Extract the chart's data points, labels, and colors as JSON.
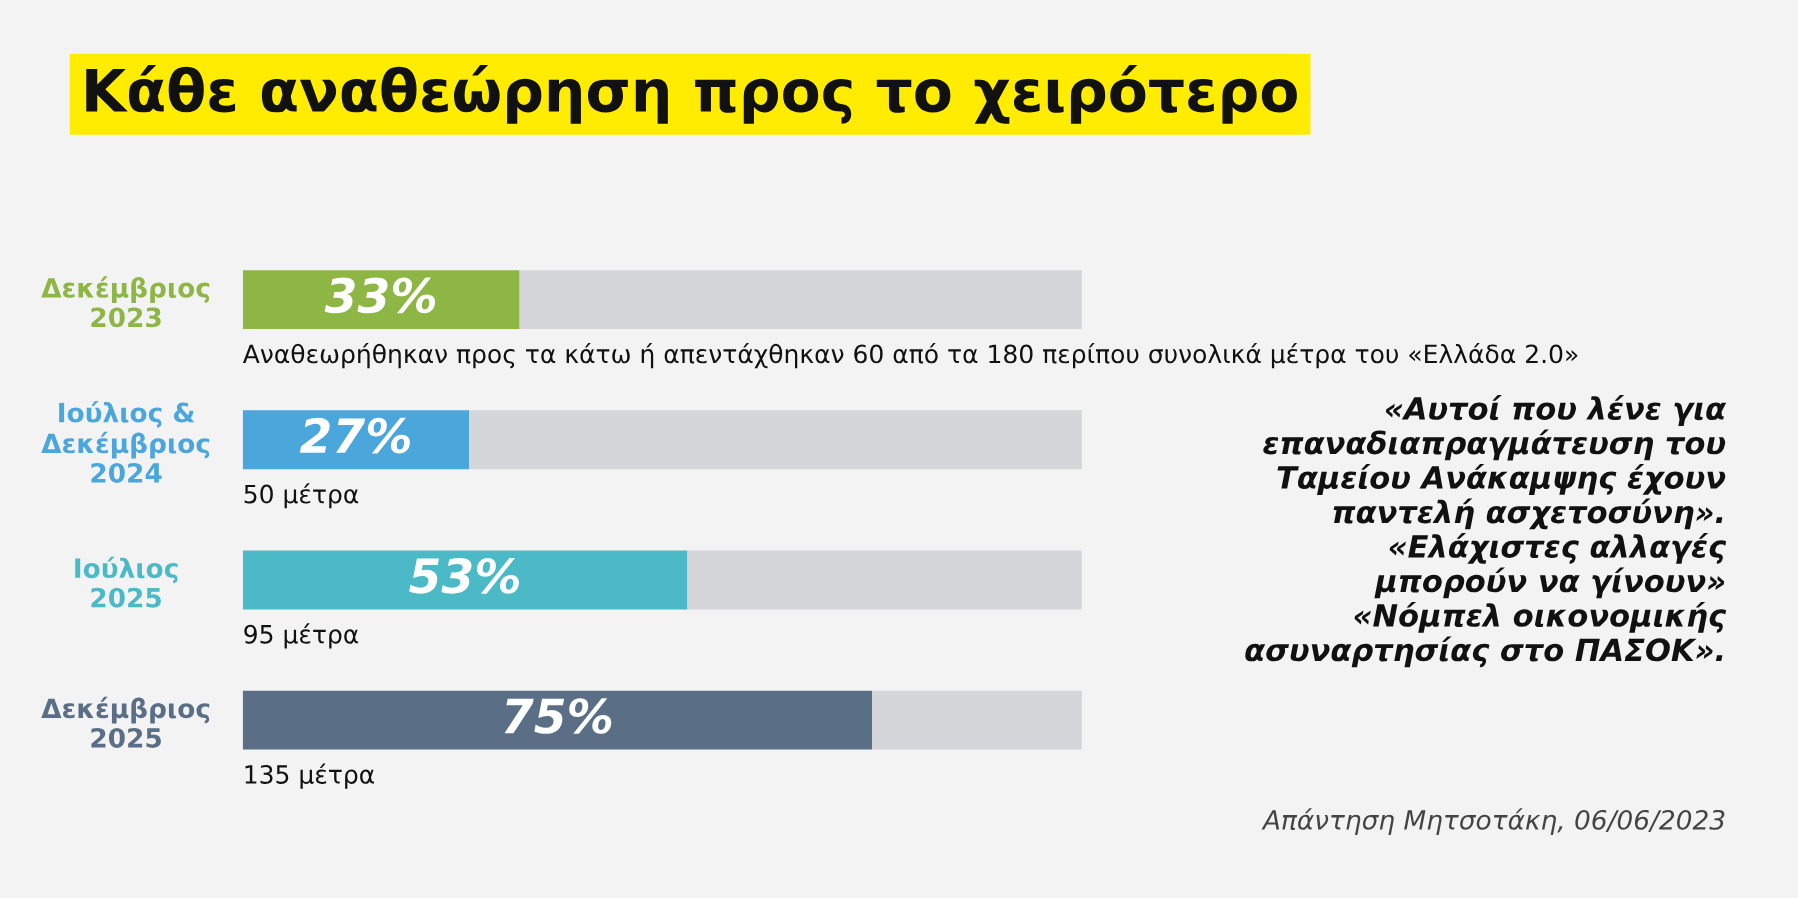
{
  "chart_data": {
    "type": "bar",
    "orientation": "horizontal",
    "stacked": true,
    "title": "Κάθε αναθεώρηση προς το χειρότερο",
    "categories": [
      "Δεκέμβριος\n2023",
      "Ιούλιος &\nΔεκέμβριος\n2024",
      "Ιούλιος\n2025",
      "Δεκέμβριος\n2025"
    ],
    "series": [
      {
        "colors": [
          "#8db644",
          "#4ba6db",
          "#4cb9c6",
          "#5a6f86"
        ],
        "values": [
          33,
          27,
          53,
          75
        ],
        "value_labels": [
          "33%",
          "27%",
          "53%",
          "75%"
        ]
      },
      {
        "color": "#d4d6d9",
        "values": [
          67,
          73,
          47,
          25
        ]
      }
    ],
    "annotations": [
      "Αναθεωρήθηκαν προς τα κάτω ή απεντάχθηκαν 60 από τα 180 περίπου συνολικά μέτρα του «Ελλάδα 2.0»",
      "50 μέτρα",
      "95 μέτρα",
      "135 μέτρα",
      "«Αυτοί που λένε για\nεπαναδιαπραγμάτευση του\nΤαμείου Ανάκαμψης έχουν\nπαντελή ασχετοσύνη».\n«Ελάχιστες αλλαγές\nμπορούν να γίνουν»\n«Νόμπελ οικονομικής\nασυναρτησίας στο ΠΑΣΟΚ».",
      "Απάντηση Μητσοτάκη, 06/06/2023"
    ],
    "legend": false,
    "grid": false
  }
}
